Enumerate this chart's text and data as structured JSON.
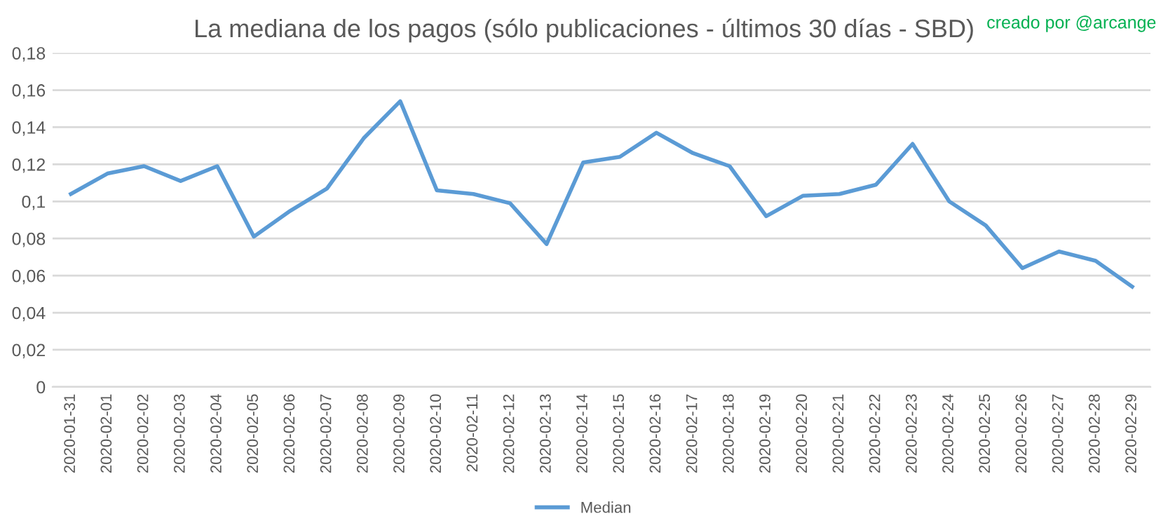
{
  "chart_data": {
    "type": "line",
    "title": "La mediana de los pagos (sólo publicaciones - últimos 30 días - SBD)",
    "annotations": [
      "creado por @arcange"
    ],
    "categories": [
      "2020-01-31",
      "2020-02-01",
      "2020-02-02",
      "2020-02-03",
      "2020-02-04",
      "2020-02-05",
      "2020-02-06",
      "2020-02-07",
      "2020-02-08",
      "2020-02-09",
      "2020-02-10",
      "2020-02-11",
      "2020-02-12",
      "2020-02-13",
      "2020-02-14",
      "2020-02-15",
      "2020-02-16",
      "2020-02-17",
      "2020-02-18",
      "2020-02-19",
      "2020-02-20",
      "2020-02-21",
      "2020-02-22",
      "2020-02-23",
      "2020-02-24",
      "2020-02-25",
      "2020-02-26",
      "2020-02-27",
      "2020-02-28",
      "2020-02-29"
    ],
    "series": [
      {
        "name": "Median",
        "color": "#5b9bd5",
        "values": [
          0.104,
          0.115,
          0.119,
          0.111,
          0.119,
          0.081,
          0.095,
          0.107,
          0.134,
          0.154,
          0.106,
          0.104,
          0.099,
          0.077,
          0.121,
          0.124,
          0.137,
          0.126,
          0.119,
          0.092,
          0.103,
          0.104,
          0.109,
          0.131,
          0.1,
          0.087,
          0.064,
          0.073,
          0.068,
          0.054
        ]
      }
    ],
    "ylim": [
      0,
      0.18
    ],
    "yticks": [
      0,
      {
        "value": 0.02,
        "label": "0,02"
      },
      {
        "value": 0.04,
        "label": "0,04"
      },
      {
        "value": 0.06,
        "label": "0,06"
      },
      {
        "value": 0.08,
        "label": "0,08"
      },
      {
        "value": 0.1,
        "label": "0,1"
      },
      {
        "value": 0.12,
        "label": "0,12"
      },
      {
        "value": 0.14,
        "label": "0,14"
      },
      {
        "value": 0.16,
        "label": "0,16"
      },
      {
        "value": 0.18,
        "label": "0,18"
      }
    ],
    "grid": "y",
    "legend": "bottom",
    "marker": "none",
    "line_style": "solid"
  }
}
